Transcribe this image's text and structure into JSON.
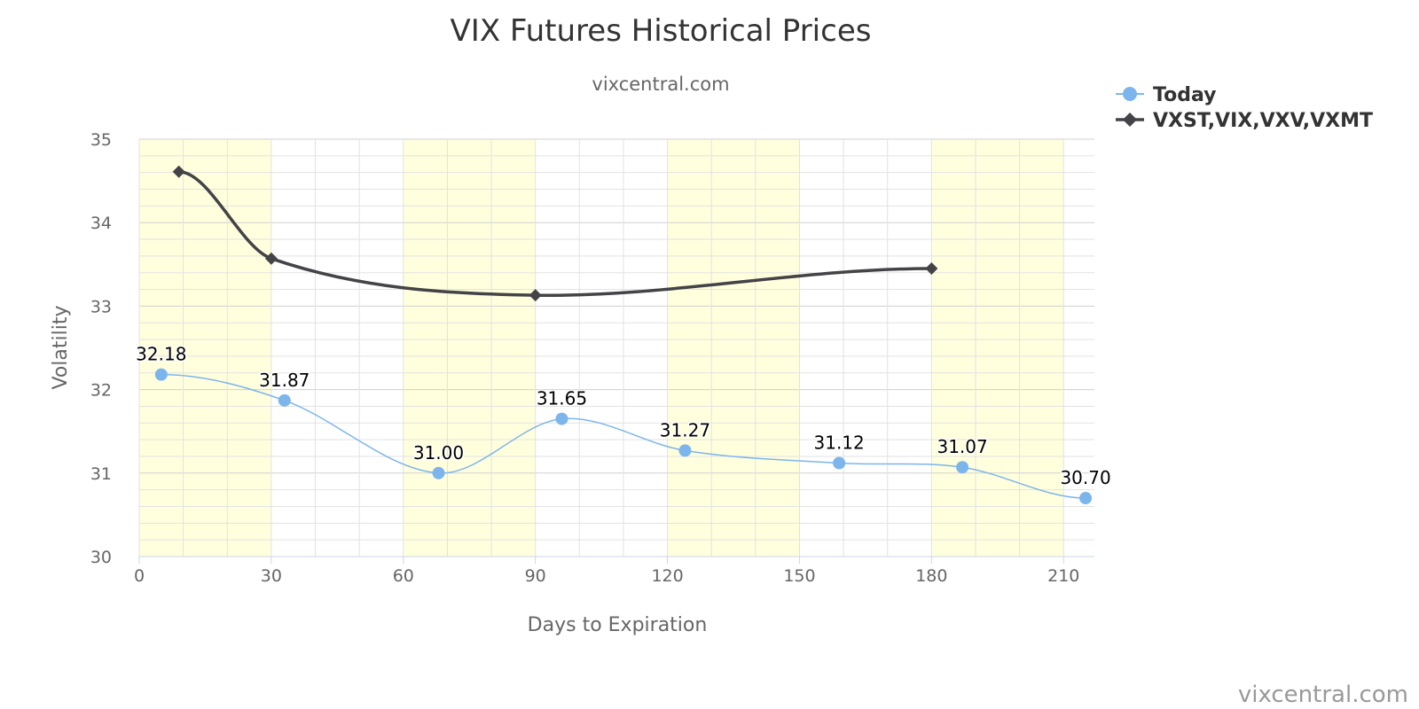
{
  "chart_data": {
    "type": "line",
    "title": "VIX Futures Historical Prices",
    "subtitle": "vixcentral.com",
    "credit": "vixcentral.com",
    "xlabel": "Days to Expiration",
    "ylabel": "Volatility",
    "xlim": [
      0,
      217
    ],
    "ylim": [
      30,
      35
    ],
    "x_ticks": [
      0,
      30,
      60,
      90,
      120,
      150,
      180,
      210
    ],
    "y_ticks": [
      30,
      31,
      32,
      33,
      34,
      35
    ],
    "x_bands": [
      [
        0,
        30
      ],
      [
        60,
        90
      ],
      [
        120,
        150
      ],
      [
        180,
        210
      ]
    ],
    "band_color": "#ffffdd",
    "grid": true,
    "legend_position": "top-right",
    "series": [
      {
        "name": "Today",
        "color": "#7cb5ec",
        "marker": "circle",
        "x": [
          5,
          33,
          68,
          96,
          124,
          159,
          187,
          215
        ],
        "values": [
          32.18,
          31.87,
          31.0,
          31.65,
          31.27,
          31.12,
          31.07,
          30.7
        ],
        "labels": [
          "32.18",
          "31.87",
          "31.00",
          "31.65",
          "31.27",
          "31.12",
          "31.07",
          "30.70"
        ]
      },
      {
        "name": "VXST,VIX,VXV,VXMT",
        "color": "#434348",
        "marker": "diamond",
        "x": [
          9,
          30,
          90,
          180
        ],
        "values": [
          34.61,
          33.57,
          33.13,
          33.45
        ]
      }
    ]
  }
}
